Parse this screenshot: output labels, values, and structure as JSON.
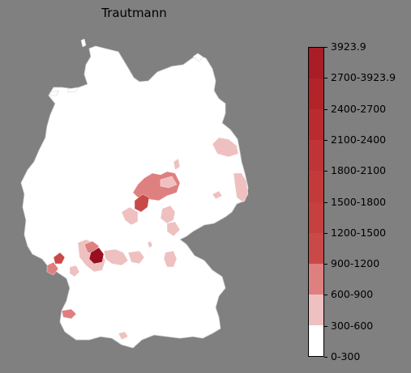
{
  "map": {
    "title": "Trautmann",
    "type": "choropleth",
    "region": "Germany districts",
    "background_color": "#808080"
  },
  "legend": {
    "bins": [
      {
        "label": "0-300",
        "color": "#ffffff"
      },
      {
        "label": "300-600",
        "color": "#efc0c0"
      },
      {
        "label": "600-900",
        "color": "#df8080"
      },
      {
        "label": "900-1200",
        "color": "#c94949"
      },
      {
        "label": "1200-1500",
        "color": "#c64040"
      },
      {
        "label": "1500-1800",
        "color": "#c33a3a"
      },
      {
        "label": "1800-2100",
        "color": "#bf3436"
      },
      {
        "label": "2100-2400",
        "color": "#ba2b30"
      },
      {
        "label": "2400-2700",
        "color": "#b2242a"
      },
      {
        "label": "2700-3923.9",
        "color": "#a81d26"
      },
      {
        "label": "3923.9",
        "color": "#9a0f1f"
      }
    ]
  }
}
